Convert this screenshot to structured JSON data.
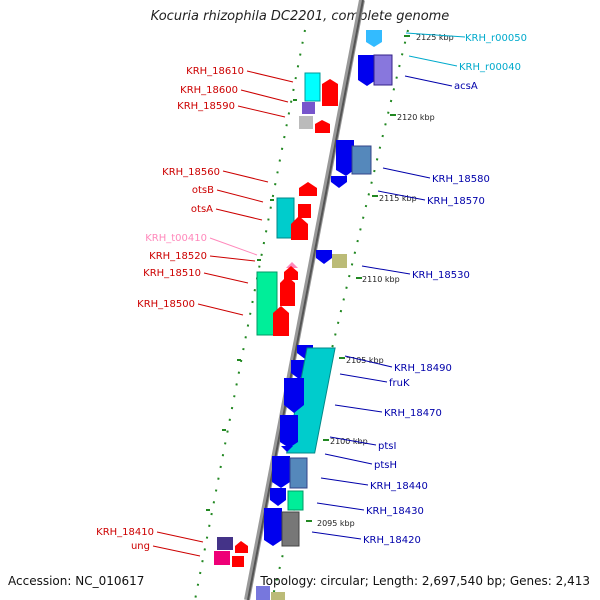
{
  "header": {
    "title": "Kocuria rhizophila DC2201, complete genome"
  },
  "footer": {
    "accession": "Accession: NC_010617",
    "topology": "Topology: circular; Length: 2,697,540 bp; Genes: 2,413"
  },
  "colors": {
    "left_label": "#cc0000",
    "right_label": "#0000aa",
    "rna_label": "#00aacc",
    "trna_label": "#ff88bb"
  },
  "ticks": [
    "2125 kbp",
    "2120 kbp",
    "2115 kbp",
    "2110 kbp",
    "2105 kbp",
    "2100 kbp",
    "2095 kbp"
  ],
  "labels_left": [
    "KRH_18610",
    "KRH_18600",
    "KRH_18590",
    "KRH_18560",
    "otsB",
    "otsA",
    "KRH_t00410",
    "KRH_18520",
    "KRH_18510",
    "KRH_18500",
    "KRH_18410",
    "ung"
  ],
  "labels_right": [
    "KRH_r00050",
    "KRH_r00040",
    "acsA",
    "KRH_18580",
    "KRH_18570",
    "KRH_18530",
    "KRH_18490",
    "fruK",
    "KRH_18470",
    "ptsI",
    "ptsH",
    "KRH_18440",
    "KRH_18430",
    "KRH_18420"
  ]
}
